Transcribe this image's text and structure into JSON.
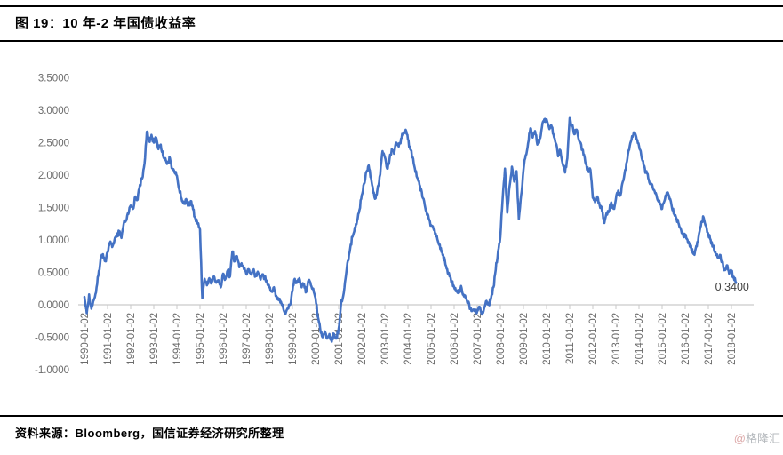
{
  "header": {
    "title": "图 19：10 年-2 年国债收益率"
  },
  "footer": {
    "source": "资料来源：Bloomberg，国信证券经济研究所整理",
    "watermark_at": "@",
    "watermark_name": "格隆汇"
  },
  "chart_data": {
    "type": "line",
    "title": "10 年-2 年国债收益率",
    "legend": "none",
    "grid": false,
    "ylim": [
      -1.0,
      3.5
    ],
    "y_axis": {
      "tick_values": [
        3.5,
        3.0,
        2.5,
        2.0,
        1.5,
        1.0,
        0.5,
        0.0,
        -0.5,
        -1.0
      ],
      "tick_labels": [
        "3.5000",
        "3.0000",
        "2.5000",
        "2.0000",
        "1.5000",
        "1.0000",
        "0.5000",
        "0.0000",
        "-0.5000",
        "-1.0000"
      ]
    },
    "x_axis": {
      "tick_labels": [
        "1990-01-02",
        "1991-01-02",
        "1992-01-02",
        "1993-01-02",
        "1994-01-02",
        "1995-01-02",
        "1996-01-02",
        "1997-01-02",
        "1998-01-02",
        "1999-01-02",
        "2000-01-02",
        "2001-01-02",
        "2002-01-02",
        "2003-01-02",
        "2004-01-02",
        "2005-01-02",
        "2006-01-02",
        "2007-01-02",
        "2008-01-02",
        "2009-01-02",
        "2010-01-02",
        "2011-01-02",
        "2012-01-02",
        "2013-01-02",
        "2014-01-02",
        "2015-01-02",
        "2016-01-02",
        "2017-01-02",
        "2018-01-02"
      ]
    },
    "series": [
      {
        "name": "10年-2年国债收益率",
        "x_start_year": 1990,
        "x_step_years": 0.1,
        "values": [
          0.12,
          -0.13,
          0.16,
          -0.06,
          0.07,
          0.19,
          0.45,
          0.71,
          0.78,
          0.67,
          0.81,
          0.96,
          0.89,
          1.0,
          1.05,
          1.12,
          1.03,
          1.25,
          1.3,
          1.4,
          1.53,
          1.48,
          1.67,
          1.62,
          1.85,
          1.95,
          2.18,
          2.67,
          2.52,
          2.62,
          2.5,
          2.58,
          2.4,
          2.47,
          2.3,
          2.26,
          2.19,
          2.26,
          2.1,
          2.04,
          1.99,
          1.78,
          1.64,
          1.56,
          1.63,
          1.53,
          1.6,
          1.47,
          1.33,
          1.25,
          1.16,
          0.1,
          0.4,
          0.3,
          0.41,
          0.33,
          0.44,
          0.34,
          0.38,
          0.27,
          0.48,
          0.4,
          0.53,
          0.44,
          0.82,
          0.67,
          0.75,
          0.58,
          0.64,
          0.55,
          0.48,
          0.55,
          0.47,
          0.53,
          0.44,
          0.51,
          0.41,
          0.47,
          0.42,
          0.37,
          0.27,
          0.21,
          0.27,
          0.14,
          0.1,
          0.05,
          -0.05,
          -0.14,
          -0.05,
          0.0,
          0.21,
          0.4,
          0.34,
          0.41,
          0.27,
          0.32,
          0.2,
          0.38,
          0.3,
          0.25,
          0.1,
          -0.18,
          -0.37,
          -0.5,
          -0.41,
          -0.52,
          -0.45,
          -0.57,
          -0.45,
          -0.52,
          -0.37,
          0.0,
          0.14,
          0.41,
          0.68,
          0.87,
          1.05,
          1.19,
          1.3,
          1.46,
          1.69,
          1.87,
          2.05,
          2.15,
          1.96,
          1.73,
          1.64,
          1.83,
          2.01,
          2.37,
          2.28,
          2.1,
          2.24,
          2.4,
          2.33,
          2.5,
          2.44,
          2.56,
          2.63,
          2.7,
          2.55,
          2.4,
          2.28,
          2.1,
          1.96,
          1.85,
          1.74,
          1.6,
          1.45,
          1.33,
          1.23,
          1.18,
          1.1,
          0.98,
          0.86,
          0.77,
          0.68,
          0.55,
          0.44,
          0.35,
          0.27,
          0.22,
          0.18,
          0.29,
          0.16,
          0.1,
          0.04,
          -0.05,
          -0.08,
          -0.1,
          -0.1,
          -0.03,
          -0.15,
          -0.05,
          0.06,
          0.0,
          0.11,
          0.27,
          0.54,
          0.82,
          1.05,
          1.64,
          2.1,
          1.42,
          1.83,
          2.13,
          1.9,
          2.06,
          1.32,
          1.69,
          2.08,
          2.31,
          2.49,
          2.72,
          2.58,
          2.68,
          2.47,
          2.56,
          2.74,
          2.86,
          2.86,
          2.74,
          2.77,
          2.63,
          2.49,
          2.29,
          2.38,
          2.17,
          2.04,
          2.26,
          2.88,
          2.77,
          2.63,
          2.7,
          2.54,
          2.47,
          2.31,
          2.17,
          2.06,
          2.08,
          1.65,
          1.58,
          1.67,
          1.53,
          1.45,
          1.26,
          1.42,
          1.44,
          1.58,
          1.48,
          1.63,
          1.76,
          1.69,
          1.9,
          2.08,
          2.26,
          2.45,
          2.6,
          2.65,
          2.55,
          2.45,
          2.3,
          2.15,
          2.05,
          1.95,
          1.88,
          1.8,
          1.72,
          1.62,
          1.55,
          1.48,
          1.6,
          1.73,
          1.68,
          1.55,
          1.41,
          1.35,
          1.27,
          1.18,
          1.09,
          1.05,
          1.0,
          0.9,
          0.86,
          0.77,
          0.9,
          1.1,
          1.28,
          1.34,
          1.22,
          1.09,
          1.0,
          0.91,
          0.82,
          0.73,
          0.77,
          0.66,
          0.54,
          0.61,
          0.48,
          0.5,
          0.43,
          0.34
        ]
      }
    ],
    "annotation": {
      "text": "0.3400",
      "x_year": 2018.03,
      "value": 0.22
    },
    "last_value": 0.34,
    "colors": {
      "line": "#4472C4",
      "axis": "#C9C9C9",
      "tick_text": "#6B6B6B",
      "annotation_text": "#404040"
    }
  }
}
